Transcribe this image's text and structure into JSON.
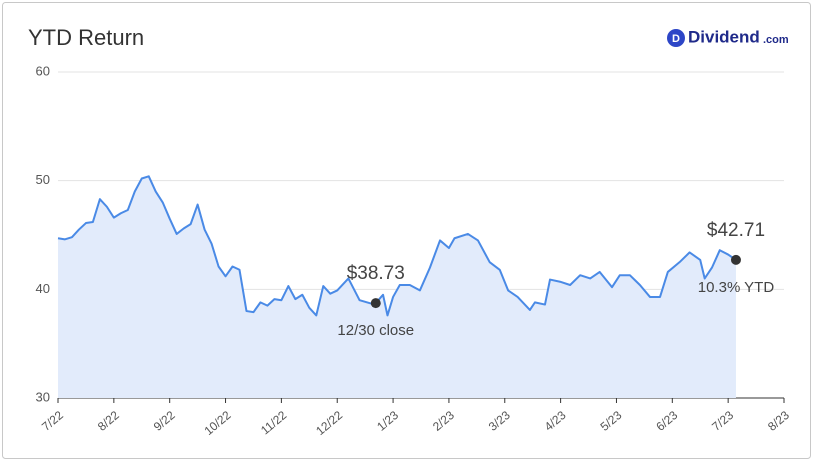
{
  "chart_data": {
    "type": "line",
    "title": "YTD Return",
    "logo": {
      "icon": "D",
      "name": "Dividend",
      "suffix": ".com"
    },
    "xlim": [
      0,
      13
    ],
    "xticks": [
      {
        "value": 0,
        "label": "7/22"
      },
      {
        "value": 1,
        "label": "8/22"
      },
      {
        "value": 2,
        "label": "9/22"
      },
      {
        "value": 3,
        "label": "10/22"
      },
      {
        "value": 4,
        "label": "11/22"
      },
      {
        "value": 5,
        "label": "12/22"
      },
      {
        "value": 6,
        "label": "1/23"
      },
      {
        "value": 7,
        "label": "2/23"
      },
      {
        "value": 8,
        "label": "3/23"
      },
      {
        "value": 9,
        "label": "4/23"
      },
      {
        "value": 10,
        "label": "5/23"
      },
      {
        "value": 11,
        "label": "6/23"
      },
      {
        "value": 12,
        "label": "7/23"
      },
      {
        "value": 13,
        "label": "8/23"
      }
    ],
    "ylim": [
      30,
      60
    ],
    "yticks": [
      30,
      40,
      50,
      60
    ],
    "grid": true,
    "fill": "#e2ebfb",
    "series": [
      {
        "name": "YTD Return",
        "color": "#4a8ae6",
        "x": [
          0,
          0.125,
          0.25,
          0.375,
          0.5,
          0.625,
          0.75,
          0.875,
          1.0,
          1.125,
          1.25,
          1.375,
          1.5,
          1.625,
          1.75,
          1.875,
          2.0,
          2.125,
          2.25,
          2.375,
          2.5,
          2.625,
          2.75,
          2.875,
          3.0,
          3.125,
          3.25,
          3.375,
          3.5,
          3.625,
          3.75,
          3.875,
          4.0,
          4.125,
          4.25,
          4.375,
          4.5,
          4.625,
          4.75,
          4.875,
          5.0,
          5.2,
          5.4,
          5.6,
          5.69,
          5.82,
          5.9,
          6.0,
          6.12,
          6.3,
          6.48,
          6.66,
          6.84,
          7.0,
          7.1,
          7.34,
          7.52,
          7.73,
          7.91,
          8.06,
          8.23,
          8.45,
          8.54,
          8.72,
          8.81,
          8.99,
          9.17,
          9.35,
          9.53,
          9.7,
          9.92,
          10.06,
          10.24,
          10.42,
          10.6,
          10.78,
          10.92,
          11.13,
          11.31,
          11.5,
          11.58,
          11.71,
          11.85,
          12.0,
          12.14
        ],
        "values": [
          44.7,
          44.6,
          44.8,
          45.5,
          46.1,
          46.2,
          48.3,
          47.6,
          46.6,
          47.0,
          47.3,
          49.0,
          50.2,
          50.4,
          49.0,
          48.0,
          46.5,
          45.1,
          45.6,
          46.0,
          47.8,
          45.5,
          44.2,
          42.1,
          41.2,
          42.1,
          41.8,
          38.0,
          37.9,
          38.8,
          38.5,
          39.1,
          39.0,
          40.3,
          39.1,
          39.5,
          38.3,
          37.6,
          40.3,
          39.6,
          39.9,
          41.0,
          39.0,
          38.7,
          38.73,
          39.5,
          37.6,
          39.3,
          40.4,
          40.4,
          39.9,
          42.0,
          44.5,
          43.8,
          44.7,
          45.1,
          44.5,
          42.5,
          41.8,
          39.9,
          39.3,
          38.1,
          38.8,
          38.6,
          40.9,
          40.7,
          40.4,
          41.3,
          41.0,
          41.6,
          40.2,
          41.3,
          41.3,
          40.4,
          39.3,
          39.3,
          41.6,
          42.5,
          43.4,
          42.7,
          41.0,
          42.0,
          43.6,
          43.2,
          42.71
        ]
      }
    ],
    "annotations": [
      {
        "x": 5.69,
        "value": 38.73,
        "value_label": "$38.73",
        "note": "12/30 close"
      },
      {
        "x": 12.14,
        "value": 42.71,
        "value_label": "$42.71",
        "note": "10.3% YTD"
      }
    ]
  }
}
